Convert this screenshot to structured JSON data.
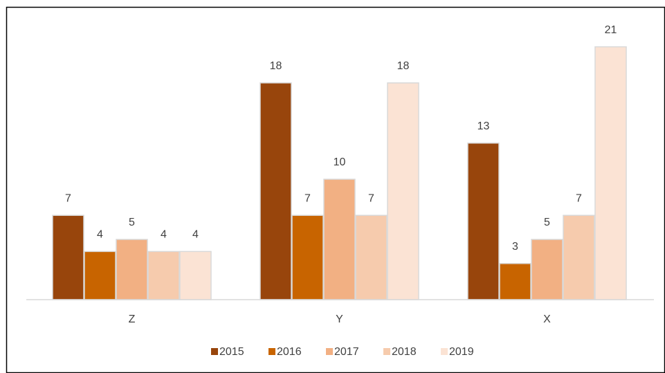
{
  "chart_data": {
    "type": "bar",
    "categories": [
      "Z",
      "Y",
      "X"
    ],
    "series": [
      {
        "name": "2015",
        "color": "#98450c",
        "values": [
          7,
          18,
          13
        ]
      },
      {
        "name": "2016",
        "color": "#c86400",
        "values": [
          4,
          7,
          3
        ]
      },
      {
        "name": "2017",
        "color": "#f2b083",
        "values": [
          5,
          10,
          5
        ]
      },
      {
        "name": "2018",
        "color": "#f6cbad",
        "values": [
          4,
          7,
          7
        ]
      },
      {
        "name": "2019",
        "color": "#fbe3d4",
        "values": [
          4,
          18,
          21
        ]
      }
    ],
    "legend": "bottom"
  }
}
